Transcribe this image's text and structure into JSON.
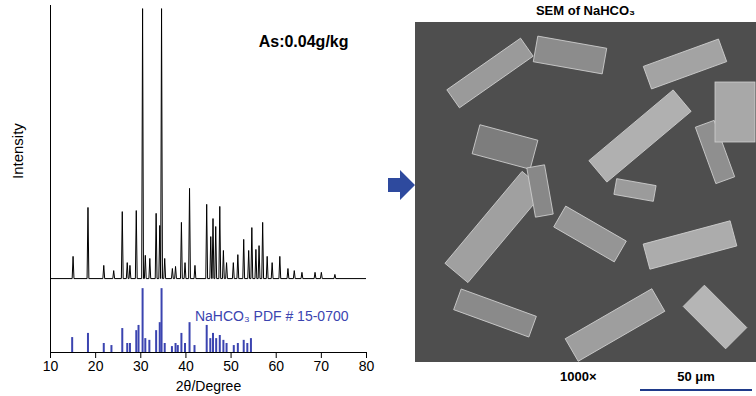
{
  "chart_data": {
    "type": "line",
    "annotations": [
      "As:0.04g/kg"
    ],
    "xlabel": "2θ/Degree",
    "ylabel": "Intensity",
    "xlim": [
      10,
      80
    ],
    "xticks": [
      10,
      20,
      30,
      40,
      50,
      60,
      70,
      80
    ],
    "ylim": [
      0,
      100
    ],
    "tick_labels": "x",
    "series": [
      {
        "type": "line",
        "color": "#000000",
        "x": [
          10,
          14.8,
          15.0,
          15.2,
          18.1,
          18.3,
          18.5,
          21.6,
          21.8,
          22.0,
          23.8,
          24.0,
          24.2,
          25.7,
          25.9,
          26.1,
          26.8,
          27.0,
          27.2,
          27.4,
          27.6,
          27.8,
          28.8,
          29.0,
          29.2,
          30.2,
          30.4,
          30.6,
          30.8,
          31.0,
          31.2,
          31.8,
          32.0,
          32.2,
          33.2,
          33.4,
          33.6,
          34.0,
          34.2,
          34.4,
          34.4,
          34.6,
          34.8,
          35.1,
          35.3,
          35.5,
          36.8,
          37.0,
          37.2,
          37.5,
          37.7,
          37.9,
          38.8,
          39.0,
          39.2,
          39.6,
          39.8,
          40.0,
          40.6,
          40.8,
          41.0,
          41.8,
          42.0,
          42.2,
          44.4,
          44.6,
          44.8,
          45.3,
          45.5,
          45.7,
          45.8,
          46.0,
          46.2,
          46.4,
          46.6,
          46.8,
          47.3,
          47.5,
          47.7,
          48.1,
          48.3,
          48.5,
          48.8,
          49.0,
          49.2,
          50.3,
          50.5,
          50.7,
          51.3,
          51.5,
          51.7,
          52.6,
          52.8,
          53.0,
          53.7,
          53.9,
          54.1,
          54.4,
          54.6,
          54.8,
          55.3,
          55.5,
          55.7,
          56.0,
          56.2,
          56.4,
          56.8,
          57.0,
          57.2,
          57.8,
          58.0,
          58.2,
          58.9,
          59.1,
          59.3,
          60.6,
          60.8,
          61.0,
          62.4,
          62.6,
          62.8,
          63.8,
          64.0,
          64.2,
          65.5,
          65.7,
          65.9,
          68.4,
          68.6,
          68.8,
          69.8,
          70.0,
          70.2,
          72.8,
          73.0,
          73.2,
          80
        ],
        "values": [
          21.3,
          21.3,
          27.7,
          21.3,
          21.3,
          41.8,
          21.3,
          21.3,
          25.1,
          21.3,
          21.3,
          23.6,
          21.3,
          21.3,
          40.6,
          21.3,
          21.3,
          25.9,
          21.3,
          21.3,
          25.1,
          21.3,
          21.3,
          40.9,
          21.3,
          21.3,
          99.1,
          21.3,
          21.3,
          28.0,
          21.3,
          21.3,
          27.1,
          21.3,
          21.3,
          40.1,
          21.3,
          21.3,
          36.6,
          21.3,
          21.3,
          99.1,
          21.3,
          21.3,
          27.1,
          21.3,
          21.3,
          24.2,
          21.3,
          21.3,
          24.8,
          21.3,
          21.3,
          37.5,
          21.3,
          21.3,
          25.9,
          21.3,
          21.3,
          47.3,
          21.3,
          21.3,
          25.1,
          21.3,
          21.3,
          42.7,
          21.3,
          21.3,
          33.4,
          21.3,
          21.3,
          38.6,
          21.3,
          21.3,
          36.3,
          21.3,
          21.3,
          42.1,
          21.3,
          21.3,
          29.4,
          21.3,
          21.3,
          25.9,
          21.3,
          21.3,
          25.9,
          21.3,
          21.3,
          28.2,
          21.3,
          21.3,
          32.6,
          21.3,
          21.3,
          29.4,
          21.3,
          21.3,
          36.0,
          21.3,
          21.3,
          29.7,
          21.3,
          21.3,
          30.8,
          21.3,
          21.3,
          37.5,
          21.3,
          21.3,
          27.7,
          21.3,
          21.3,
          25.9,
          21.3,
          21.3,
          27.7,
          21.3,
          21.3,
          24.2,
          21.3,
          21.3,
          23.6,
          21.3,
          21.3,
          23.1,
          21.3,
          21.3,
          23.1,
          21.3,
          21.3,
          23.1,
          21.3,
          21.3,
          22.5,
          21.3,
          21.3
        ]
      },
      {
        "name": "NaHCO₃ PDF # 15-0700",
        "type": "stick",
        "color": "#3b44b0",
        "x": [
          14.8,
          18.3,
          21.8,
          23.5,
          25.9,
          27.0,
          27.6,
          29.0,
          29.5,
          30.4,
          31.0,
          31.9,
          33.4,
          34.2,
          34.6,
          35.3,
          36.9,
          37.7,
          38.2,
          39.0,
          39.8,
          40.8,
          41.9,
          44.6,
          45.4,
          46.0,
          46.7,
          47.5,
          48.3,
          49.0,
          50.6,
          51.5,
          52.8,
          53.6,
          54.4
        ],
        "values": [
          4.3,
          5.5,
          2.6,
          2.0,
          6.9,
          2.6,
          2.6,
          6.3,
          7.8,
          18.4,
          4.0,
          3.5,
          6.3,
          8.6,
          18.4,
          2.6,
          1.7,
          2.6,
          2.0,
          5.5,
          2.6,
          8.6,
          2.0,
          7.8,
          4.0,
          5.5,
          4.0,
          4.9,
          3.5,
          2.6,
          2.0,
          2.6,
          3.5,
          2.6,
          4.0
        ]
      }
    ]
  },
  "image_panel": {
    "title": "SEM of NaHCO₃",
    "magnification": "1000×",
    "scale_bar": "50 μm"
  }
}
